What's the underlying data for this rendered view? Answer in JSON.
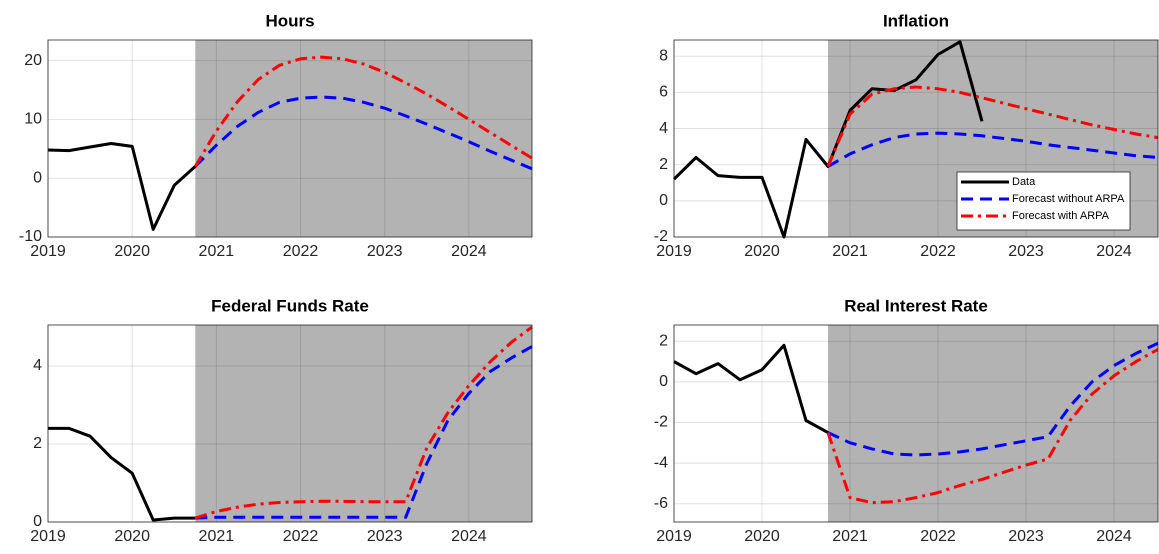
{
  "chart_data": [
    {
      "type": "line",
      "title": "Hours",
      "x": [
        2019,
        2019.25,
        2019.5,
        2019.75,
        2020,
        2020.25,
        2020.5,
        2020.75,
        2021,
        2021.25,
        2021.5,
        2021.75,
        2022,
        2022.25,
        2022.5,
        2022.75,
        2023,
        2023.25,
        2023.5,
        2023.75,
        2024,
        2024.25,
        2024.5,
        2024.75
      ],
      "series": [
        {
          "color": "#000000",
          "dash": "solid",
          "values": [
            4.8,
            4.7,
            5.3,
            5.9,
            5.4,
            -8.7,
            -1.2,
            2.0,
            null,
            null,
            null,
            null,
            null,
            null,
            null,
            null,
            null,
            null,
            null,
            null,
            null,
            null,
            null,
            null
          ]
        },
        {
          "color": "#0000ff",
          "dash": "dashed",
          "values": [
            null,
            null,
            null,
            null,
            null,
            null,
            null,
            2.0,
            5.6,
            8.8,
            11.2,
            12.9,
            13.6,
            13.8,
            13.6,
            12.9,
            11.9,
            10.6,
            9.2,
            7.7,
            6.2,
            4.6,
            3.1,
            1.6
          ]
        },
        {
          "color": "#ff0000",
          "dash": "dashdot",
          "values": [
            null,
            null,
            null,
            null,
            null,
            null,
            null,
            2.0,
            8.0,
            13.0,
            16.8,
            19.2,
            20.3,
            20.6,
            20.3,
            19.4,
            18.0,
            16.2,
            14.3,
            12.2,
            10.0,
            7.8,
            5.6,
            3.4
          ]
        }
      ],
      "xlim": [
        2019,
        2024.75
      ],
      "xticks": [
        2019,
        2020,
        2021,
        2022,
        2023,
        2024
      ],
      "ylim": [
        -10,
        23.5
      ],
      "yticks": [
        -10,
        0,
        10,
        20
      ],
      "grid": true,
      "shade_from": 2020.75,
      "shade_color": "#b3b3b3"
    },
    {
      "type": "line",
      "title": "Inflation",
      "x": [
        2019,
        2019.25,
        2019.5,
        2019.75,
        2020,
        2020.25,
        2020.5,
        2020.75,
        2021,
        2021.25,
        2021.5,
        2021.75,
        2022,
        2022.25,
        2022.5,
        2022.75,
        2023,
        2023.25,
        2023.5,
        2023.75,
        2024,
        2024.25,
        2024.5
      ],
      "series": [
        {
          "name": "Data",
          "color": "#000000",
          "dash": "solid",
          "values": [
            1.2,
            2.4,
            1.4,
            1.3,
            1.3,
            -2.0,
            3.4,
            1.9,
            5.0,
            6.2,
            6.1,
            6.7,
            8.1,
            8.8,
            4.4,
            null,
            null,
            null,
            null,
            null,
            null,
            null,
            null
          ]
        },
        {
          "name": "Forecast without ARPA",
          "color": "#0000ff",
          "dash": "dashed",
          "values": [
            null,
            null,
            null,
            null,
            null,
            null,
            null,
            1.9,
            2.6,
            3.1,
            3.5,
            3.7,
            3.75,
            3.7,
            3.6,
            3.45,
            3.3,
            3.1,
            2.95,
            2.8,
            2.65,
            2.5,
            2.4
          ]
        },
        {
          "name": "Forecast with ARPA",
          "color": "#ff0000",
          "dash": "dashdot",
          "values": [
            null,
            null,
            null,
            null,
            null,
            null,
            null,
            1.9,
            4.8,
            5.9,
            6.2,
            6.3,
            6.2,
            6.0,
            5.7,
            5.4,
            5.1,
            4.8,
            4.5,
            4.2,
            3.95,
            3.7,
            3.5
          ]
        }
      ],
      "xlim": [
        2019,
        2024.5
      ],
      "xticks": [
        2019,
        2020,
        2021,
        2022,
        2023,
        2024
      ],
      "ylim": [
        -2,
        8.9
      ],
      "yticks": [
        -2,
        0,
        2,
        4,
        6,
        8
      ],
      "grid": true,
      "shade_from": 2020.75,
      "shade_color": "#b3b3b3",
      "legend": "lower right"
    },
    {
      "type": "line",
      "title": "Federal Funds Rate",
      "x": [
        2019,
        2019.25,
        2019.5,
        2019.75,
        2020,
        2020.25,
        2020.5,
        2020.75,
        2021,
        2021.25,
        2021.5,
        2021.75,
        2022,
        2022.25,
        2022.5,
        2022.75,
        2023,
        2023.25,
        2023.5,
        2023.75,
        2024,
        2024.25,
        2024.5,
        2024.75
      ],
      "series": [
        {
          "color": "#000000",
          "dash": "solid",
          "values": [
            2.4,
            2.4,
            2.2,
            1.65,
            1.25,
            0.05,
            0.1,
            0.1,
            null,
            null,
            null,
            null,
            null,
            null,
            null,
            null,
            null,
            null,
            null,
            null,
            null,
            null,
            null,
            null
          ]
        },
        {
          "color": "#0000ff",
          "dash": "dashed",
          "values": [
            null,
            null,
            null,
            null,
            null,
            null,
            null,
            0.1,
            0.12,
            0.12,
            0.12,
            0.12,
            0.12,
            0.12,
            0.12,
            0.12,
            0.12,
            0.12,
            1.5,
            2.6,
            3.3,
            3.85,
            4.2,
            4.5
          ]
        },
        {
          "color": "#ff0000",
          "dash": "dashdot",
          "values": [
            null,
            null,
            null,
            null,
            null,
            null,
            null,
            0.1,
            0.27,
            0.38,
            0.46,
            0.5,
            0.52,
            0.53,
            0.53,
            0.52,
            0.52,
            0.52,
            1.9,
            2.8,
            3.5,
            4.1,
            4.6,
            5.0
          ]
        }
      ],
      "xlim": [
        2019,
        2024.75
      ],
      "xticks": [
        2019,
        2020,
        2021,
        2022,
        2023,
        2024
      ],
      "ylim": [
        0,
        5.05
      ],
      "yticks": [
        0,
        2,
        4
      ],
      "grid": true,
      "shade_from": 2020.75,
      "shade_color": "#b3b3b3"
    },
    {
      "type": "line",
      "title": "Real Interest Rate",
      "x": [
        2019,
        2019.25,
        2019.5,
        2019.75,
        2020,
        2020.25,
        2020.5,
        2020.75,
        2021,
        2021.25,
        2021.5,
        2021.75,
        2022,
        2022.25,
        2022.5,
        2022.75,
        2023,
        2023.25,
        2023.5,
        2023.75,
        2024,
        2024.25,
        2024.5
      ],
      "series": [
        {
          "color": "#000000",
          "dash": "solid",
          "values": [
            1.0,
            0.4,
            0.9,
            0.1,
            0.6,
            1.8,
            -1.9,
            -2.5,
            null,
            null,
            null,
            null,
            null,
            null,
            null,
            null,
            null,
            null,
            null,
            null,
            null,
            null,
            null
          ]
        },
        {
          "color": "#0000ff",
          "dash": "dashed",
          "values": [
            null,
            null,
            null,
            null,
            null,
            null,
            null,
            -2.5,
            -3.0,
            -3.3,
            -3.55,
            -3.6,
            -3.55,
            -3.45,
            -3.3,
            -3.1,
            -2.9,
            -2.7,
            -1.2,
            0.0,
            0.8,
            1.4,
            1.9
          ]
        },
        {
          "color": "#ff0000",
          "dash": "dashdot",
          "values": [
            null,
            null,
            null,
            null,
            null,
            null,
            null,
            -2.5,
            -5.7,
            -5.95,
            -5.9,
            -5.7,
            -5.45,
            -5.1,
            -4.8,
            -4.45,
            -4.1,
            -3.8,
            -1.9,
            -0.6,
            0.3,
            1.0,
            1.6
          ]
        }
      ],
      "xlim": [
        2019,
        2024.5
      ],
      "xticks": [
        2019,
        2020,
        2021,
        2022,
        2023,
        2024
      ],
      "ylim": [
        -6.9,
        2.8
      ],
      "yticks": [
        -6,
        -4,
        -2,
        0,
        2
      ],
      "grid": true,
      "shade_from": 2020.75,
      "shade_color": "#b3b3b3"
    }
  ]
}
